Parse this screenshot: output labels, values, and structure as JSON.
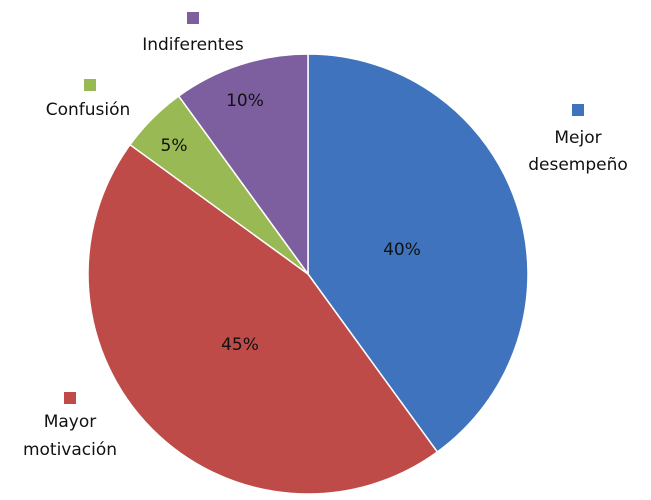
{
  "chart_data": {
    "type": "pie",
    "categories": [
      "Mejor desempeño",
      "Mayor motivación",
      "Confusión",
      "Indiferentes"
    ],
    "values": [
      40,
      45,
      5,
      10
    ],
    "value_labels": [
      "40%",
      "45%",
      "5%",
      "10%"
    ],
    "colors": [
      "#3f73bd",
      "#be4b48",
      "#98b954",
      "#7d5fa0"
    ]
  }
}
